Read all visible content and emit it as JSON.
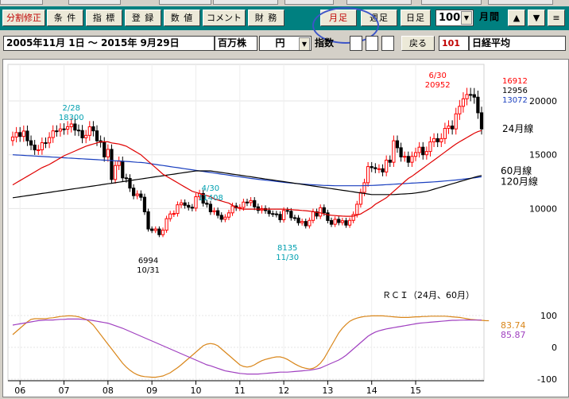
{
  "toolbar": {
    "buttons": [
      "分割修正",
      "条 件",
      "指 標",
      "登 録",
      "数 値",
      "コメント",
      "財 務",
      "月足",
      "週足",
      "日足"
    ],
    "count_value": "100",
    "period_label": "月間",
    "up_arrow": "▲",
    "down_arrow": "▼",
    "menu_glyph": "≡"
  },
  "subbar": {
    "date_range": "2005年11月 1日 〜 2015年 9月29日",
    "unit": "百万株",
    "currency": "円",
    "index_label": "指数",
    "back_label": "戻る",
    "code": "101",
    "name": "日経平均"
  },
  "colors": {
    "candle_up": "#ff0000",
    "candle_down": "#000000",
    "ma24": "#e00000",
    "ma60": "#1a3fbf",
    "ma120": "#000000",
    "rci24": "#d9861a",
    "rci60": "#a040c0",
    "cyan_label": "#00a0b0"
  },
  "chart_data": {
    "type": "candlestick",
    "interval": "monthly",
    "x_labels": [
      "06",
      "07",
      "08",
      "09",
      "10",
      "11",
      "12",
      "13",
      "14",
      "15"
    ],
    "y_ticks": [
      10000,
      15000,
      20000
    ],
    "rci_ticks": [
      100,
      0,
      -100
    ],
    "ma_labels": [
      "24月線",
      "60月線",
      "120月線"
    ],
    "rci_title": "ＲＣＩ（24月、60月）",
    "rci_values": [
      "83.74",
      "85.87"
    ],
    "right_values": {
      "top": "16912",
      "ma60": "12956",
      "ma120": "13072"
    },
    "annotations": [
      {
        "date": "2/28",
        "value": "18300"
      },
      {
        "date": "4/30",
        "value": "11408"
      },
      {
        "date": "6/30",
        "value": "20952"
      },
      {
        "date": "10/31",
        "value": "6994"
      },
      {
        "date": "11/30",
        "value": "8135"
      }
    ],
    "close": [
      16650,
      17060,
      16700,
      17200,
      16300,
      15900,
      15450,
      15460,
      16120,
      16100,
      16600,
      17220,
      17200,
      17400,
      17380,
      17600,
      17860,
      17290,
      17250,
      16570,
      16800,
      17600,
      17220,
      16300,
      16150,
      14800,
      15500,
      12700,
      14000,
      14400,
      12850,
      12800,
      11900,
      11200,
      11350,
      11050,
      9700,
      8100,
      7960,
      8100,
      7570,
      7990,
      9060,
      9500,
      9540,
      10350,
      10530,
      10300,
      10120,
      10040,
      11100,
      11400,
      10500,
      10400,
      9700,
      9800,
      9370,
      9000,
      9200,
      9600,
      10240,
      10080,
      10100,
      10600,
      10550,
      10740,
      10160,
      9830,
      10000,
      9810,
      9530,
      9500,
      9460,
      8960,
      9820,
      9750,
      9150,
      9120,
      8680,
      8800,
      8400,
      8900,
      9700,
      9300,
      10080,
      9600,
      8890,
      8540,
      9000,
      8700,
      8870,
      8460,
      8900,
      9450,
      10400,
      11500,
      12400,
      13900,
      13800,
      13700,
      13700,
      13400,
      14500,
      14300,
      16300,
      15650,
      14800,
      14850,
      14300,
      14850,
      15200,
      15700,
      15000,
      15300,
      16200,
      16500,
      16200,
      16500,
      17450,
      17670,
      17400,
      18800,
      19500,
      20200,
      20600,
      20585,
      20350,
      18900,
      17400
    ],
    "ma24": [
      12200,
      12400,
      12600,
      12800,
      13000,
      13200,
      13400,
      13600,
      13800,
      13950,
      14100,
      14300,
      14500,
      14700,
      14900,
      15050,
      15200,
      15350,
      15500,
      15650,
      15800,
      15900,
      16000,
      16100,
      16200,
      16200,
      16200,
      16100,
      16050,
      16000,
      15900,
      15800,
      15600,
      15400,
      15200,
      15000,
      14700,
      14400,
      14100,
      13800,
      13500,
      13200,
      13000,
      12800,
      12600,
      12400,
      12200,
      12000,
      11800,
      11600,
      11500,
      11400,
      11300,
      11200,
      11100,
      10900,
      10800,
      10700,
      10600,
      10500,
      10300,
      10100,
      10000,
      9950,
      9950,
      9950,
      9950,
      9950,
      9950,
      9950,
      9950,
      9950,
      9950,
      9950,
      9940,
      9930,
      9900,
      9870,
      9850,
      9820,
      9800,
      9760,
      9720,
      9650,
      9600,
      9500,
      9420,
      9370,
      9350,
      9320,
      9300,
      9280,
      9280,
      9300,
      9400,
      9500,
      9700,
      9900,
      10100,
      10400,
      10600,
      10800,
      11000,
      11300,
      11600,
      11900,
      12200,
      12500,
      12800,
      13000,
      13250,
      13500,
      13750,
      14000,
      14250,
      14500,
      14750,
      15000,
      15250,
      15500,
      15750,
      16000,
      16200,
      16400,
      16600,
      16800,
      17000,
      17150,
      17250
    ],
    "ma60": [
      15000,
      14980,
      14960,
      14940,
      14920,
      14900,
      14880,
      14860,
      14840,
      14820,
      14800,
      14780,
      14760,
      14740,
      14720,
      14700,
      14680,
      14660,
      14640,
      14620,
      14600,
      14580,
      14560,
      14540,
      14520,
      14500,
      14480,
      14460,
      14440,
      14420,
      14400,
      14380,
      14360,
      14330,
      14300,
      14280,
      14250,
      14200,
      14150,
      14100,
      14050,
      14000,
      13950,
      13900,
      13850,
      13800,
      13750,
      13700,
      13650,
      13600,
      13550,
      13500,
      13450,
      13400,
      13350,
      13300,
      13250,
      13200,
      13150,
      13100,
      13050,
      13000,
      12950,
      12900,
      12850,
      12800,
      12760,
      12720,
      12680,
      12640,
      12600,
      12560,
      12520,
      12480,
      12440,
      12400,
      12370,
      12340,
      12310,
      12280,
      12250,
      12230,
      12210,
      12190,
      12170,
      12150,
      12140,
      12130,
      12120,
      12120,
      12120,
      12120,
      12120,
      12120,
      12120,
      12120,
      12130,
      12140,
      12150,
      12160,
      12180,
      12200,
      12220,
      12240,
      12260,
      12280,
      12300,
      12320,
      12340,
      12360,
      12380,
      12400,
      12420,
      12440,
      12460,
      12480,
      12500,
      12530,
      12560,
      12590,
      12620,
      12650,
      12690,
      12730,
      12770,
      12810,
      12850,
      12900,
      12956
    ],
    "ma120": [
      11000,
      11050,
      11100,
      11150,
      11200,
      11250,
      11300,
      11350,
      11400,
      11450,
      11500,
      11550,
      11600,
      11650,
      11700,
      11750,
      11800,
      11850,
      11900,
      11950,
      12000,
      12050,
      12100,
      12150,
      12200,
      12250,
      12300,
      12350,
      12400,
      12450,
      12500,
      12550,
      12600,
      12650,
      12700,
      12750,
      12800,
      12850,
      12900,
      12950,
      13000,
      13050,
      13100,
      13150,
      13200,
      13250,
      13300,
      13350,
      13400,
      13450,
      13500,
      13500,
      13500,
      13500,
      13500,
      13450,
      13400,
      13350,
      13300,
      13250,
      13200,
      13150,
      13100,
      13050,
      13000,
      12950,
      12900,
      12850,
      12800,
      12750,
      12700,
      12650,
      12600,
      12550,
      12500,
      12450,
      12400,
      12350,
      12300,
      12250,
      12200,
      12150,
      12100,
      12050,
      12000,
      11950,
      11900,
      11850,
      11800,
      11750,
      11700,
      11650,
      11600,
      11550,
      11500,
      11450,
      11400,
      11350,
      11300,
      11300,
      11300,
      11300,
      11300,
      11300,
      11300,
      11320,
      11340,
      11360,
      11380,
      11400,
      11450,
      11500,
      11550,
      11600,
      11700,
      11800,
      11900,
      12000,
      12100,
      12200,
      12300,
      12400,
      12500,
      12600,
      12700,
      12800,
      12900,
      13000,
      13072
    ],
    "rci24": [
      40,
      50,
      60,
      70,
      80,
      88,
      90,
      90,
      90,
      90,
      92,
      93,
      95,
      97,
      98,
      99,
      99,
      98,
      96,
      92,
      88,
      80,
      70,
      55,
      40,
      25,
      10,
      -5,
      -20,
      -35,
      -50,
      -62,
      -72,
      -80,
      -86,
      -90,
      -92,
      -93,
      -94,
      -94,
      -92,
      -90,
      -85,
      -80,
      -72,
      -64,
      -55,
      -45,
      -35,
      -25,
      -15,
      -5,
      5,
      10,
      12,
      10,
      5,
      -5,
      -15,
      -25,
      -35,
      -45,
      -55,
      -60,
      -62,
      -60,
      -55,
      -48,
      -42,
      -38,
      -35,
      -32,
      -30,
      -30,
      -33,
      -38,
      -45,
      -52,
      -58,
      -63,
      -66,
      -68,
      -66,
      -60,
      -50,
      -35,
      -15,
      5,
      25,
      45,
      60,
      72,
      82,
      88,
      92,
      95,
      97,
      98,
      99,
      99,
      99,
      99,
      98,
      97,
      96,
      95,
      94,
      94,
      94,
      95,
      96,
      96,
      97,
      97,
      98,
      98,
      98,
      98,
      98,
      97,
      96,
      95,
      94,
      92,
      90,
      88,
      87,
      86,
      85,
      84,
      83.74
    ],
    "rci60": [
      70,
      72,
      74,
      76,
      78,
      80,
      82,
      84,
      85,
      86,
      86,
      86,
      87,
      88,
      88,
      89,
      89,
      89,
      89,
      88,
      87,
      86,
      84,
      82,
      80,
      78,
      76,
      72,
      68,
      64,
      60,
      55,
      50,
      45,
      40,
      35,
      30,
      25,
      20,
      15,
      10,
      5,
      0,
      -5,
      -10,
      -15,
      -20,
      -25,
      -30,
      -35,
      -40,
      -45,
      -50,
      -55,
      -58,
      -62,
      -66,
      -70,
      -74,
      -76,
      -78,
      -80,
      -82,
      -83,
      -84,
      -84,
      -84,
      -84,
      -83,
      -82,
      -81,
      -80,
      -79,
      -78,
      -78,
      -78,
      -77,
      -76,
      -75,
      -74,
      -73,
      -72,
      -70,
      -68,
      -65,
      -60,
      -55,
      -50,
      -45,
      -40,
      -33,
      -25,
      -15,
      -5,
      5,
      15,
      25,
      35,
      42,
      48,
      52,
      55,
      58,
      60,
      62,
      64,
      66,
      68,
      70,
      72,
      74,
      76,
      77,
      78,
      79,
      80,
      81,
      82,
      83,
      84,
      85,
      85,
      85.5,
      85.87,
      86,
      85.87,
      85.87,
      85.87,
      85.87
    ]
  }
}
